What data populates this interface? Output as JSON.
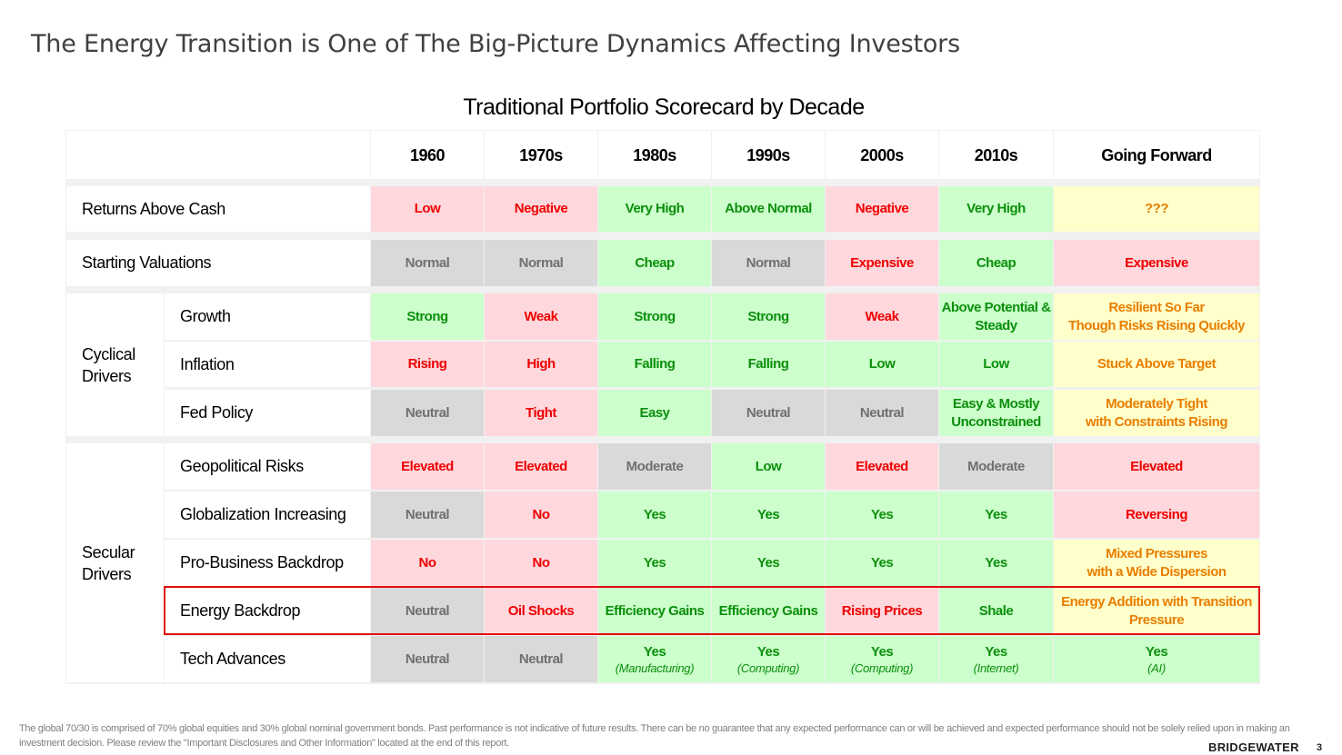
{
  "slide_title": "The Energy Transition is One of The Big-Picture Dynamics Affecting Investors",
  "table_title": "Traditional Portfolio Scorecard by Decade",
  "columns": [
    "1960",
    "1970s",
    "1980s",
    "1990s",
    "2000s",
    "2010s",
    "Going Forward"
  ],
  "groups": {
    "cyclical": "Cyclical Drivers",
    "secular": "Secular Drivers"
  },
  "colors": {
    "green_bg": "#ccffcc",
    "green_text": "#0b8f0b",
    "red_bg": "#ffd8dd",
    "red_text": "#ee0000",
    "gray_bg": "#d9d9d9",
    "gray_text": "#707070",
    "yellow_bg": "#ffffcc",
    "yellow_text": "#e87e00",
    "highlight_border": "#e01010"
  },
  "rows": [
    {
      "label": "Returns Above Cash",
      "cells": [
        {
          "text": "Low",
          "tone": "red"
        },
        {
          "text": "Negative",
          "tone": "red"
        },
        {
          "text": "Very High",
          "tone": "green"
        },
        {
          "text": "Above Normal",
          "tone": "green"
        },
        {
          "text": "Negative",
          "tone": "red"
        },
        {
          "text": "Very High",
          "tone": "green"
        },
        {
          "text": "???",
          "tone": "yellow"
        }
      ]
    },
    {
      "label": "Starting Valuations",
      "cells": [
        {
          "text": "Normal",
          "tone": "gray"
        },
        {
          "text": "Normal",
          "tone": "gray"
        },
        {
          "text": "Cheap",
          "tone": "green"
        },
        {
          "text": "Normal",
          "tone": "gray"
        },
        {
          "text": "Expensive",
          "tone": "red"
        },
        {
          "text": "Cheap",
          "tone": "green"
        },
        {
          "text": "Expensive",
          "tone": "red"
        }
      ]
    },
    {
      "label": "Growth",
      "group": "cyclical",
      "cells": [
        {
          "text": "Strong",
          "tone": "green"
        },
        {
          "text": "Weak",
          "tone": "red"
        },
        {
          "text": "Strong",
          "tone": "green"
        },
        {
          "text": "Strong",
          "tone": "green"
        },
        {
          "text": "Weak",
          "tone": "red"
        },
        {
          "text": "Above Potential &",
          "text2": "Steady",
          "tone": "green"
        },
        {
          "text": "Resilient So Far",
          "text2": "Though Risks Rising Quickly",
          "tone": "yellow"
        }
      ]
    },
    {
      "label": "Inflation",
      "group": "cyclical",
      "cells": [
        {
          "text": "Rising",
          "tone": "red"
        },
        {
          "text": "High",
          "tone": "red"
        },
        {
          "text": "Falling",
          "tone": "green"
        },
        {
          "text": "Falling",
          "tone": "green"
        },
        {
          "text": "Low",
          "tone": "green"
        },
        {
          "text": "Low",
          "tone": "green"
        },
        {
          "text": "Stuck Above Target",
          "tone": "yellow"
        }
      ]
    },
    {
      "label": "Fed Policy",
      "group": "cyclical",
      "cells": [
        {
          "text": "Neutral",
          "tone": "gray"
        },
        {
          "text": "Tight",
          "tone": "red"
        },
        {
          "text": "Easy",
          "tone": "green"
        },
        {
          "text": "Neutral",
          "tone": "gray"
        },
        {
          "text": "Neutral",
          "tone": "gray"
        },
        {
          "text": "Easy & Mostly",
          "text2": "Unconstrained",
          "tone": "green"
        },
        {
          "text": "Moderately Tight",
          "text2": "with Constraints Rising",
          "tone": "yellow"
        }
      ]
    },
    {
      "label": "Geopolitical Risks",
      "group": "secular",
      "cells": [
        {
          "text": "Elevated",
          "tone": "red"
        },
        {
          "text": "Elevated",
          "tone": "red"
        },
        {
          "text": "Moderate",
          "tone": "gray"
        },
        {
          "text": "Low",
          "tone": "green"
        },
        {
          "text": "Elevated",
          "tone": "red"
        },
        {
          "text": "Moderate",
          "tone": "gray"
        },
        {
          "text": "Elevated",
          "tone": "red"
        }
      ]
    },
    {
      "label": "Globalization Increasing",
      "group": "secular",
      "cells": [
        {
          "text": "Neutral",
          "tone": "gray"
        },
        {
          "text": "No",
          "tone": "red"
        },
        {
          "text": "Yes",
          "tone": "green"
        },
        {
          "text": "Yes",
          "tone": "green"
        },
        {
          "text": "Yes",
          "tone": "green"
        },
        {
          "text": "Yes",
          "tone": "green"
        },
        {
          "text": "Reversing",
          "tone": "red"
        }
      ]
    },
    {
      "label": "Pro-Business Backdrop",
      "group": "secular",
      "cells": [
        {
          "text": "No",
          "tone": "red"
        },
        {
          "text": "No",
          "tone": "red"
        },
        {
          "text": "Yes",
          "tone": "green"
        },
        {
          "text": "Yes",
          "tone": "green"
        },
        {
          "text": "Yes",
          "tone": "green"
        },
        {
          "text": "Yes",
          "tone": "green"
        },
        {
          "text": "Mixed Pressures",
          "text2": "with a Wide Dispersion",
          "tone": "yellow"
        }
      ]
    },
    {
      "label": "Energy Backdrop",
      "group": "secular",
      "highlighted": true,
      "cells": [
        {
          "text": "Neutral",
          "tone": "gray"
        },
        {
          "text": "Oil Shocks",
          "tone": "red"
        },
        {
          "text": "Efficiency Gains",
          "tone": "green"
        },
        {
          "text": "Efficiency Gains",
          "tone": "green"
        },
        {
          "text": "Rising Prices",
          "tone": "red"
        },
        {
          "text": "Shale",
          "tone": "green"
        },
        {
          "text": "Energy Addition with Transition",
          "text2": "Pressure",
          "tone": "yellow"
        }
      ]
    },
    {
      "label": "Tech Advances",
      "group": "secular",
      "cells": [
        {
          "text": "Neutral",
          "tone": "gray"
        },
        {
          "text": "Neutral",
          "tone": "gray"
        },
        {
          "text": "Yes",
          "sub": "(Manufacturing)",
          "tone": "green"
        },
        {
          "text": "Yes",
          "sub": "(Computing)",
          "tone": "green"
        },
        {
          "text": "Yes",
          "sub": "(Computing)",
          "tone": "green"
        },
        {
          "text": "Yes",
          "sub": "(Internet)",
          "tone": "green"
        },
        {
          "text": "Yes",
          "sub": "(AI)",
          "tone": "green"
        }
      ]
    }
  ],
  "footnote": "The global 70/30 is comprised of 70% global equities and 30% global nominal government bonds. Past performance is not indicative of future results. There can be no guarantee that any expected performance can or will be achieved and expected performance should not be solely relied upon in making an investment decision. Please review the \"Important Disclosures and Other Information\" located at the end of this report.",
  "brand": "BRIDGEWATER",
  "page_number": "3"
}
